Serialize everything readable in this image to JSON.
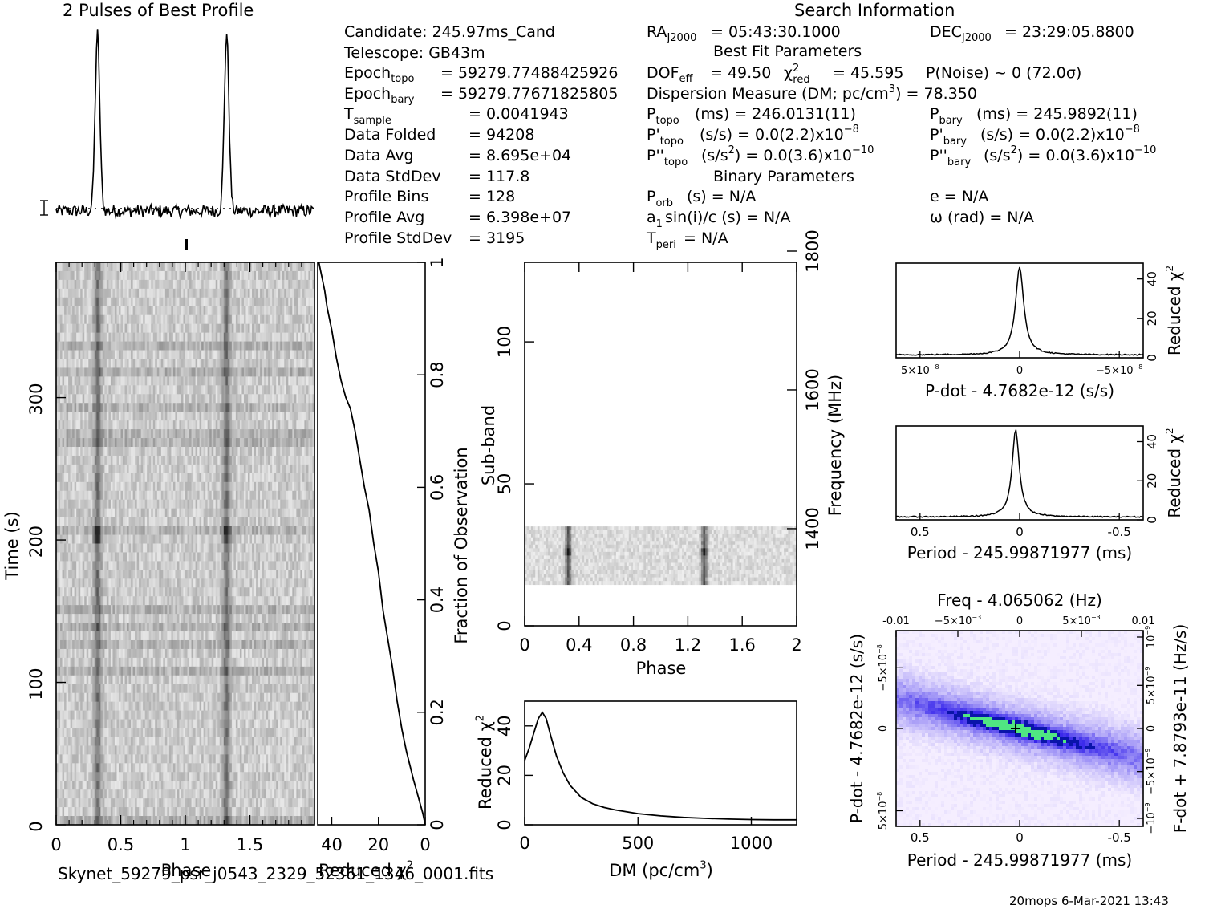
{
  "chart_data": [
    {
      "type": "line",
      "title": "2 Pulses of Best Profile",
      "description_values": "two sharp pulses per two rotations",
      "pulse_phases": [
        0.32,
        1.32
      ],
      "baseline": 0.0,
      "peak": 1.0
    },
    {
      "type": "heatmap",
      "xlabel": "Phase",
      "ylabel": "Time (s)",
      "xlim": [
        0,
        2
      ],
      "ylim": [
        0,
        395
      ],
      "x_ticks": [
        "0",
        "0.5",
        "1",
        "1.5"
      ],
      "x_tick_values": [
        0,
        0.5,
        1,
        1.5
      ],
      "y_ticks": [
        "0",
        "100",
        "200",
        "300"
      ],
      "y_tick_values": [
        0,
        100,
        200,
        300
      ],
      "pulse_phases": [
        0.32,
        1.32
      ]
    },
    {
      "type": "line",
      "xlabel": "Reduced χ",
      "xlabel_sup": "2",
      "ylabel": "Fraction of Observation",
      "xlim": [
        46,
        0
      ],
      "ylim": [
        0,
        1
      ],
      "x_ticks": [
        "40",
        "20",
        "0"
      ],
      "x_tick_values": [
        40,
        20,
        0
      ],
      "y_ticks": [
        "0",
        "0.2",
        "0.4",
        "0.6",
        "0.8",
        "1"
      ],
      "y_tick_values": [
        0,
        0.2,
        0.4,
        0.6,
        0.8,
        1
      ],
      "x": [
        0,
        1,
        3,
        5,
        8,
        10,
        12,
        14,
        16,
        18,
        20,
        22,
        24,
        26,
        28,
        30,
        32,
        34,
        36,
        38,
        40,
        42,
        43,
        44,
        45,
        45.5
      ],
      "y": [
        0,
        0.02,
        0.05,
        0.08,
        0.13,
        0.17,
        0.22,
        0.28,
        0.33,
        0.38,
        0.45,
        0.5,
        0.56,
        0.6,
        0.65,
        0.7,
        0.74,
        0.76,
        0.79,
        0.83,
        0.88,
        0.92,
        0.95,
        0.97,
        0.99,
        1.0
      ]
    },
    {
      "type": "heatmap",
      "xlabel": "Phase",
      "ylabel": "Sub-band",
      "y2label": "Frequency (MHz)",
      "xlim": [
        0,
        2
      ],
      "ylim": [
        0,
        128
      ],
      "y2lim": [
        1260,
        1800
      ],
      "x_ticks": [
        "0",
        "0.4",
        "0.8",
        "1.2",
        "1.6",
        "2"
      ],
      "x_tick_values": [
        0,
        0.4,
        0.8,
        1.2,
        1.6,
        2
      ],
      "y_ticks": [
        "0",
        "50",
        "100"
      ],
      "y_tick_values": [
        0,
        50,
        100
      ],
      "y2_ticks": [
        "1400",
        "1600",
        "1800"
      ],
      "y2_tick_values": [
        1400,
        1600,
        1800
      ],
      "band_range": [
        14.5,
        35
      ],
      "pulse_phases": [
        0.32,
        1.32
      ]
    },
    {
      "type": "line",
      "xlabel": "DM (pc/cm",
      "xlabel_sup": "3",
      "xlabel_tail": ")",
      "ylabel": "Reduced χ",
      "ylabel_sup": "2",
      "xlim": [
        0,
        1200
      ],
      "ylim": [
        0,
        50
      ],
      "x_ticks": [
        "0",
        "500",
        "1000"
      ],
      "x_tick_values": [
        0,
        500,
        1000
      ],
      "y_ticks": [
        "0",
        "20",
        "40"
      ],
      "y_tick_values": [
        0,
        20,
        40
      ],
      "x": [
        0,
        20,
        40,
        60,
        78,
        95,
        115,
        140,
        170,
        200,
        250,
        300,
        350,
        400,
        500,
        600,
        700,
        800,
        900,
        1000,
        1100,
        1200
      ],
      "y": [
        26,
        31,
        37,
        43,
        45.5,
        43,
        36,
        28,
        21,
        16,
        11,
        8.5,
        7,
        6,
        4.5,
        3.6,
        3,
        2.6,
        2.3,
        2.1,
        2.0,
        2.0
      ]
    },
    {
      "type": "line",
      "xlabel": "P-dot - 4.7682e-12 (s/s)",
      "ylabel": "Reduced χ",
      "ylabel_sup": "2",
      "xlim": [
        6.2e-08,
        -6.2e-08
      ],
      "ylim": [
        0,
        48
      ],
      "x_ticks_text": [
        "5×10",
        "0",
        "−5×10"
      ],
      "x_ticks_exp": [
        "−8",
        "",
        "−8"
      ],
      "x_tick_values": [
        5e-08,
        0,
        -5e-08
      ],
      "y_ticks": [
        "0",
        "20",
        "40"
      ],
      "y_tick_values": [
        0,
        20,
        40
      ],
      "peak_x": 0,
      "peak_y": 46
    },
    {
      "type": "line",
      "xlabel": "Period - 245.99871977 (ms)",
      "ylabel": "Reduced χ",
      "ylabel_sup": "2",
      "xlim": [
        0.62,
        -0.62
      ],
      "ylim": [
        0,
        48
      ],
      "x_ticks": [
        "0.5",
        "0",
        "-0.5"
      ],
      "x_tick_values": [
        0.5,
        0,
        -0.5
      ],
      "y_ticks": [
        "0",
        "20",
        "40"
      ],
      "y_tick_values": [
        0,
        20,
        40
      ],
      "peak_x": 0.02,
      "peak_y": 46
    },
    {
      "type": "heatmap",
      "title": "Freq - 4.065062 (Hz)",
      "xlabel": "Period - 245.99871977 (ms)",
      "ylabel": "P-dot - 4.7682e-12 (s/s)",
      "y2label": "F-dot + 7.8793e-11 (Hz/s)",
      "xlim": [
        0.62,
        -0.62
      ],
      "ylim": [
        6.2e-08,
        -6.2e-08
      ],
      "x_ticks": [
        "0.5",
        "0",
        "-0.5"
      ],
      "x_tick_values": [
        0.5,
        0,
        -0.5
      ],
      "top_ticks_text": [
        "-0.01",
        "−5×10",
        "0",
        "5×10",
        "0.01"
      ],
      "top_ticks_exp": [
        "",
        "−3",
        "",
        "−3",
        ""
      ],
      "left_ticks_text": [
        "−5×10",
        "0",
        "5×10"
      ],
      "left_ticks_exp": [
        "−8",
        "",
        "−8"
      ],
      "right_ticks_text": [
        "10",
        "5×10",
        "0",
        "−5×10",
        "−10"
      ],
      "right_ticks_exp": [
        "−9",
        "−9",
        "",
        "−9",
        "−9"
      ],
      "best_point": [
        0.02,
        0
      ]
    }
  ],
  "info": {
    "search_title": "Search Information",
    "best_fit_title": "Best Fit Parameters",
    "binary_title": "Binary Parameters",
    "candidate": "Candidate:  245.97ms_Cand",
    "telescope": "Telescope:  GB43m",
    "epoch_topo": "= 59279.77488425926",
    "epoch_bary": "= 59279.77671825805",
    "t_sample": "=   0.0041943",
    "data_folded_label": "Data Folded",
    "data_folded": "=   94208",
    "data_avg_label": "Data Avg",
    "data_avg": "=   8.695e+04",
    "data_std_label": "Data StdDev",
    "data_std": "=   117.8",
    "profile_bins_label": "Profile Bins",
    "profile_bins": "=   128",
    "profile_avg_label": "Profile Avg",
    "profile_avg": "=   6.398e+07",
    "profile_std_label": "Profile StdDev",
    "profile_std": "=   3195",
    "ra": "= 05:43:30.1000",
    "dec": "= 23:29:05.8800",
    "dof": "= 49.50",
    "chi_red": "= 45.595",
    "p_noise": "P(Noise) ~ 0    (72.0σ)",
    "dm_line": "Dispersion Measure (DM; pc/cm",
    "dm_value": ") = 78.350",
    "p_topo": "(ms) =  246.0131(11)",
    "p_bary": "(ms) =  245.9892(11)",
    "pd_topo": "(s/s) = 0.0(2.2)x10",
    "pd_bary": "(s/s) = 0.0(2.2)x10",
    "pdd_topo": "(s/s",
    "pdd_topo_tail": ") = 0.0(3.6)x10",
    "pdd_bary": "(s/s",
    "pdd_bary_tail": ") = 0.0(3.6)x10",
    "p_orb": "(s) = N/A",
    "a1": "sin(i)/c (s) = N/A",
    "t_peri": "= N/A",
    "ecc": "e = N/A",
    "omega": "ω (rad) = N/A"
  },
  "footer": {
    "filename": "Skynet_59279_psr_j0543_2329_52361_1346_0001.fits",
    "stamp": "20mops  6-Mar-2021 13:43"
  }
}
